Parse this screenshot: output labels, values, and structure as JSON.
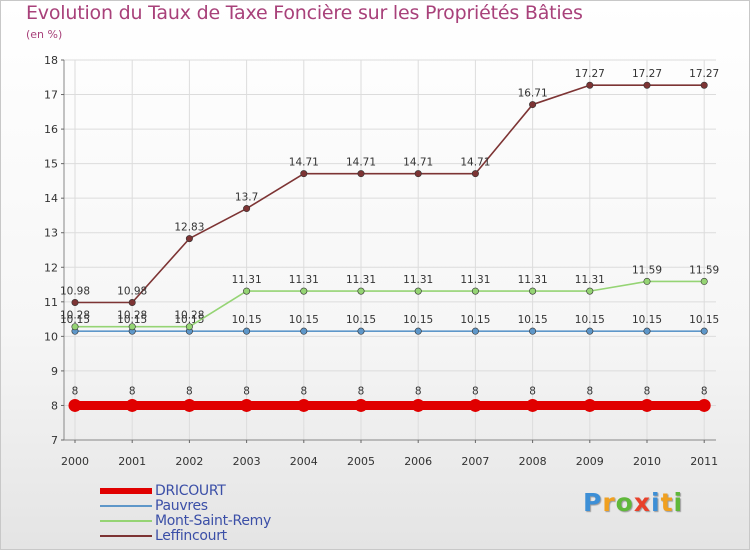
{
  "title": "Evolution du Taux de Taxe Foncière sur les Propriétés Bâties",
  "unit": "(en %)",
  "logo_text": "Proxiti",
  "chart_data": {
    "type": "line",
    "title": "Evolution du Taux de Taxe Foncière sur les Propriétés Bâties",
    "ylabel": "(en %)",
    "xlabel": "",
    "ylim": [
      7,
      18
    ],
    "yticks": [
      7,
      8,
      9,
      10,
      11,
      12,
      13,
      14,
      15,
      16,
      17,
      18
    ],
    "categories": [
      "2000",
      "2001",
      "2002",
      "2003",
      "2004",
      "2005",
      "2006",
      "2007",
      "2008",
      "2009",
      "2010",
      "2011"
    ],
    "series": [
      {
        "name": "DRICOURT",
        "color": "#e00000",
        "values": [
          8,
          8,
          8,
          8,
          8,
          8,
          8,
          8,
          8,
          8,
          8,
          8
        ],
        "labels": [
          "8",
          "8",
          "8",
          "8",
          "8",
          "8",
          "8",
          "8",
          "8",
          "8",
          "8",
          "8"
        ]
      },
      {
        "name": "Pauvres",
        "color": "#5e97c9",
        "values": [
          10.15,
          10.15,
          10.15,
          10.15,
          10.15,
          10.15,
          10.15,
          10.15,
          10.15,
          10.15,
          10.15,
          10.15
        ],
        "labels": [
          "10.15",
          "10.15",
          "10.15",
          "10.15",
          "10.15",
          "10.15",
          "10.15",
          "10.15",
          "10.15",
          "10.15",
          "10.15",
          "10.15"
        ]
      },
      {
        "name": "Mont-Saint-Remy",
        "color": "#95d474",
        "values": [
          10.28,
          10.28,
          10.28,
          11.31,
          11.31,
          11.31,
          11.31,
          11.31,
          11.31,
          11.31,
          11.59,
          11.59
        ],
        "labels": [
          "10.28",
          "10.28",
          "10.28",
          "11.31",
          "11.31",
          "11.31",
          "11.31",
          "11.31",
          "11.31",
          "11.31",
          "11.59",
          "11.59"
        ]
      },
      {
        "name": "Leffincourt",
        "color": "#7d3434",
        "values": [
          10.98,
          10.98,
          12.83,
          13.7,
          14.71,
          14.71,
          14.71,
          14.71,
          16.71,
          17.27,
          17.27,
          17.27
        ],
        "labels": [
          "10.98",
          "10.98",
          "12.83",
          "13.7",
          "14.71",
          "14.71",
          "14.71",
          "14.71",
          "16.71",
          "17.27",
          "17.27",
          "17.27"
        ]
      }
    ],
    "legend": "bottom-left",
    "grid": true
  }
}
